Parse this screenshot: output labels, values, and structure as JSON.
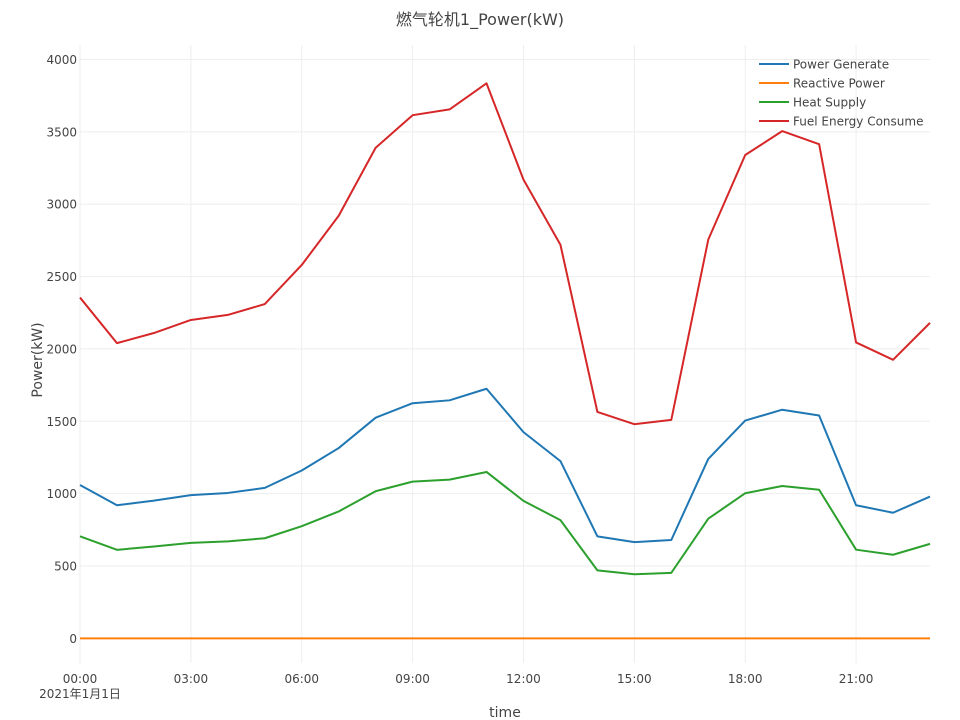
{
  "chart_data": {
    "type": "line",
    "title": "燃气轮机1_Power(kW)",
    "xlabel": "time",
    "ylabel": "Power(kW)",
    "x_date_label": "2021年1月1日",
    "x_tick_labels": [
      "00:00",
      "03:00",
      "06:00",
      "09:00",
      "12:00",
      "15:00",
      "18:00",
      "21:00"
    ],
    "x_tick_hours": [
      0,
      3,
      6,
      9,
      12,
      15,
      18,
      21
    ],
    "y_ticks": [
      0,
      500,
      1000,
      1500,
      2000,
      2500,
      3000,
      3500,
      4000
    ],
    "ylim": [
      -170,
      4100
    ],
    "xlim": [
      0,
      23
    ],
    "grid": true,
    "legend_position": "top-right",
    "x": [
      0,
      1,
      2,
      3,
      4,
      5,
      6,
      7,
      8,
      9,
      10,
      11,
      12,
      13,
      14,
      15,
      16,
      17,
      18,
      19,
      20,
      21,
      22,
      23
    ],
    "series": [
      {
        "name": "Power Generate",
        "color": "#1f77b4",
        "values": [
          1060,
          920,
          952,
          990,
          1005,
          1040,
          1160,
          1315,
          1525,
          1625,
          1645,
          1725,
          1425,
          1225,
          705,
          665,
          680,
          1240,
          1505,
          1580,
          1540,
          920,
          868,
          980
        ]
      },
      {
        "name": "Reactive Power",
        "color": "#ff7f0e",
        "values": [
          0,
          0,
          0,
          0,
          0,
          0,
          0,
          0,
          0,
          0,
          0,
          0,
          0,
          0,
          0,
          0,
          0,
          0,
          0,
          0,
          0,
          0,
          0,
          0
        ]
      },
      {
        "name": "Heat Supply",
        "color": "#2ca02c",
        "values": [
          705,
          612,
          635,
          660,
          670,
          692,
          775,
          877,
          1017,
          1083,
          1097,
          1150,
          950,
          817,
          470,
          443,
          453,
          827,
          1003,
          1053,
          1027,
          613,
          578,
          653
        ]
      },
      {
        "name": "Fuel Energy Consume",
        "color": "#d62728",
        "values": [
          2355,
          2040,
          2110,
          2200,
          2235,
          2310,
          2580,
          2920,
          3390,
          3615,
          3655,
          3835,
          3170,
          2720,
          1565,
          1480,
          1510,
          2755,
          3340,
          3505,
          3415,
          2045,
          1925,
          2180
        ]
      }
    ]
  }
}
